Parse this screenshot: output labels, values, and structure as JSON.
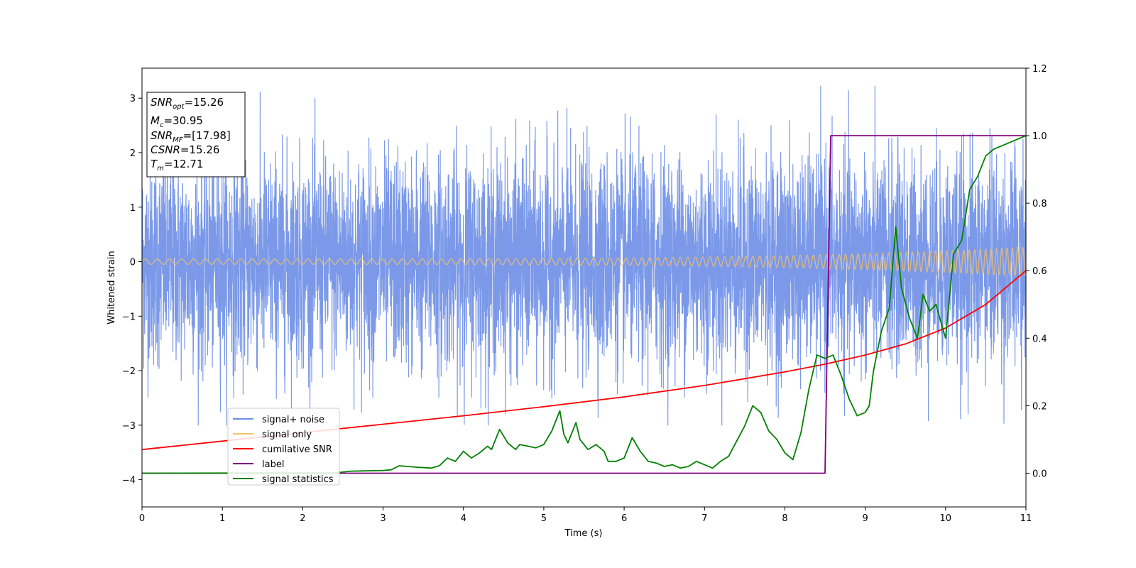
{
  "chart_data": {
    "type": "line",
    "xlabel": "Time (s)",
    "ylabel": "Whitened strain",
    "xlim": [
      0,
      11
    ],
    "ylim_left": [
      -4.5,
      3.55
    ],
    "ylim_right": [
      -0.1,
      1.2
    ],
    "x_ticks": [
      "0",
      "1",
      "2",
      "3",
      "4",
      "5",
      "6",
      "7",
      "8",
      "9",
      "10",
      "11"
    ],
    "y_ticks_left": [
      "3",
      "2",
      "1",
      "0",
      "−1",
      "−2",
      "−3",
      "−4"
    ],
    "y_ticks_right": [
      "1.2",
      "1.0",
      "0.8",
      "0.6",
      "0.4",
      "0.2",
      "0.0"
    ],
    "info_box": {
      "lines": [
        {
          "name": "SNR",
          "sub": "opt",
          "value": "=15.26"
        },
        {
          "name": "M",
          "sub": "c",
          "value": "=30.95"
        },
        {
          "name": "SNR",
          "sub": "MF",
          "value": "=[17.98]"
        },
        {
          "name": "CSNR",
          "sub": "",
          "value": "=15.26"
        },
        {
          "name": "T",
          "sub": "m",
          "value": "=12.71"
        }
      ]
    },
    "legend": {
      "placement": "lower-left",
      "entries": [
        {
          "label": "signal+ noise",
          "color": "#6d8ee6"
        },
        {
          "label": "signal only",
          "color": "#f5c26b"
        },
        {
          "label": "cumilative SNR",
          "color": "#ff0000"
        },
        {
          "label": "label",
          "color": "#800080"
        },
        {
          "label": "signal statistics",
          "color": "#008000"
        }
      ]
    },
    "series": [
      {
        "name": "signal+ noise",
        "axis": "left",
        "color": "#6d8ee6",
        "kind": "noise",
        "x_range": [
          0,
          11
        ],
        "center": 0,
        "approx_std": 0.95,
        "approx_min": -3.0,
        "approx_max": 3.22
      },
      {
        "name": "signal only",
        "axis": "left",
        "color": "#f5c26b",
        "kind": "chirp",
        "x_range": [
          0,
          11
        ],
        "amplitude_start": 0.05,
        "amplitude_end": 0.27
      },
      {
        "name": "cumilative SNR",
        "axis": "right",
        "color": "#ff0000",
        "x": [
          0,
          1,
          2,
          3,
          4,
          5,
          6,
          7,
          8,
          8.5,
          9,
          9.5,
          10,
          10.5,
          11
        ],
        "y": [
          0.07,
          0.095,
          0.12,
          0.145,
          0.17,
          0.197,
          0.226,
          0.26,
          0.3,
          0.323,
          0.35,
          0.383,
          0.43,
          0.5,
          0.6
        ]
      },
      {
        "name": "label",
        "axis": "right",
        "color": "#800080",
        "x": [
          0,
          8.5,
          8.57,
          11
        ],
        "y": [
          0,
          0,
          1,
          1
        ]
      },
      {
        "name": "signal statistics",
        "axis": "right",
        "color": "#008000",
        "x": [
          0,
          2.4,
          2.6,
          3.0,
          3.1,
          3.2,
          3.4,
          3.6,
          3.7,
          3.8,
          3.9,
          4.0,
          4.1,
          4.2,
          4.3,
          4.35,
          4.45,
          4.55,
          4.65,
          4.7,
          4.8,
          4.9,
          5.0,
          5.1,
          5.2,
          5.25,
          5.3,
          5.4,
          5.45,
          5.55,
          5.65,
          5.7,
          5.75,
          5.8,
          5.9,
          6.0,
          6.1,
          6.2,
          6.3,
          6.4,
          6.5,
          6.6,
          6.7,
          6.8,
          6.9,
          7.0,
          7.1,
          7.2,
          7.3,
          7.4,
          7.5,
          7.6,
          7.7,
          7.8,
          7.9,
          8.0,
          8.1,
          8.2,
          8.3,
          8.4,
          8.5,
          8.6,
          8.7,
          8.8,
          8.9,
          9.0,
          9.05,
          9.1,
          9.2,
          9.3,
          9.38,
          9.45,
          9.55,
          9.65,
          9.72,
          9.8,
          9.88,
          9.95,
          10.0,
          10.1,
          10.2,
          10.3,
          10.4,
          10.5,
          10.6,
          10.7,
          10.8,
          10.9,
          11.0
        ],
        "y": [
          0,
          0.001,
          0.006,
          0.008,
          0.01,
          0.022,
          0.018,
          0.015,
          0.022,
          0.045,
          0.035,
          0.065,
          0.045,
          0.06,
          0.08,
          0.07,
          0.13,
          0.09,
          0.07,
          0.085,
          0.08,
          0.075,
          0.085,
          0.125,
          0.185,
          0.115,
          0.09,
          0.15,
          0.1,
          0.07,
          0.085,
          0.075,
          0.065,
          0.035,
          0.035,
          0.045,
          0.105,
          0.065,
          0.035,
          0.03,
          0.02,
          0.025,
          0.015,
          0.02,
          0.035,
          0.025,
          0.015,
          0.035,
          0.05,
          0.095,
          0.14,
          0.2,
          0.18,
          0.125,
          0.1,
          0.06,
          0.04,
          0.12,
          0.25,
          0.35,
          0.34,
          0.35,
          0.29,
          0.22,
          0.17,
          0.18,
          0.2,
          0.3,
          0.42,
          0.49,
          0.73,
          0.55,
          0.46,
          0.4,
          0.53,
          0.48,
          0.5,
          0.44,
          0.4,
          0.65,
          0.69,
          0.84,
          0.88,
          0.94,
          0.96,
          0.97,
          0.98,
          0.99,
          1.0
        ]
      }
    ]
  }
}
